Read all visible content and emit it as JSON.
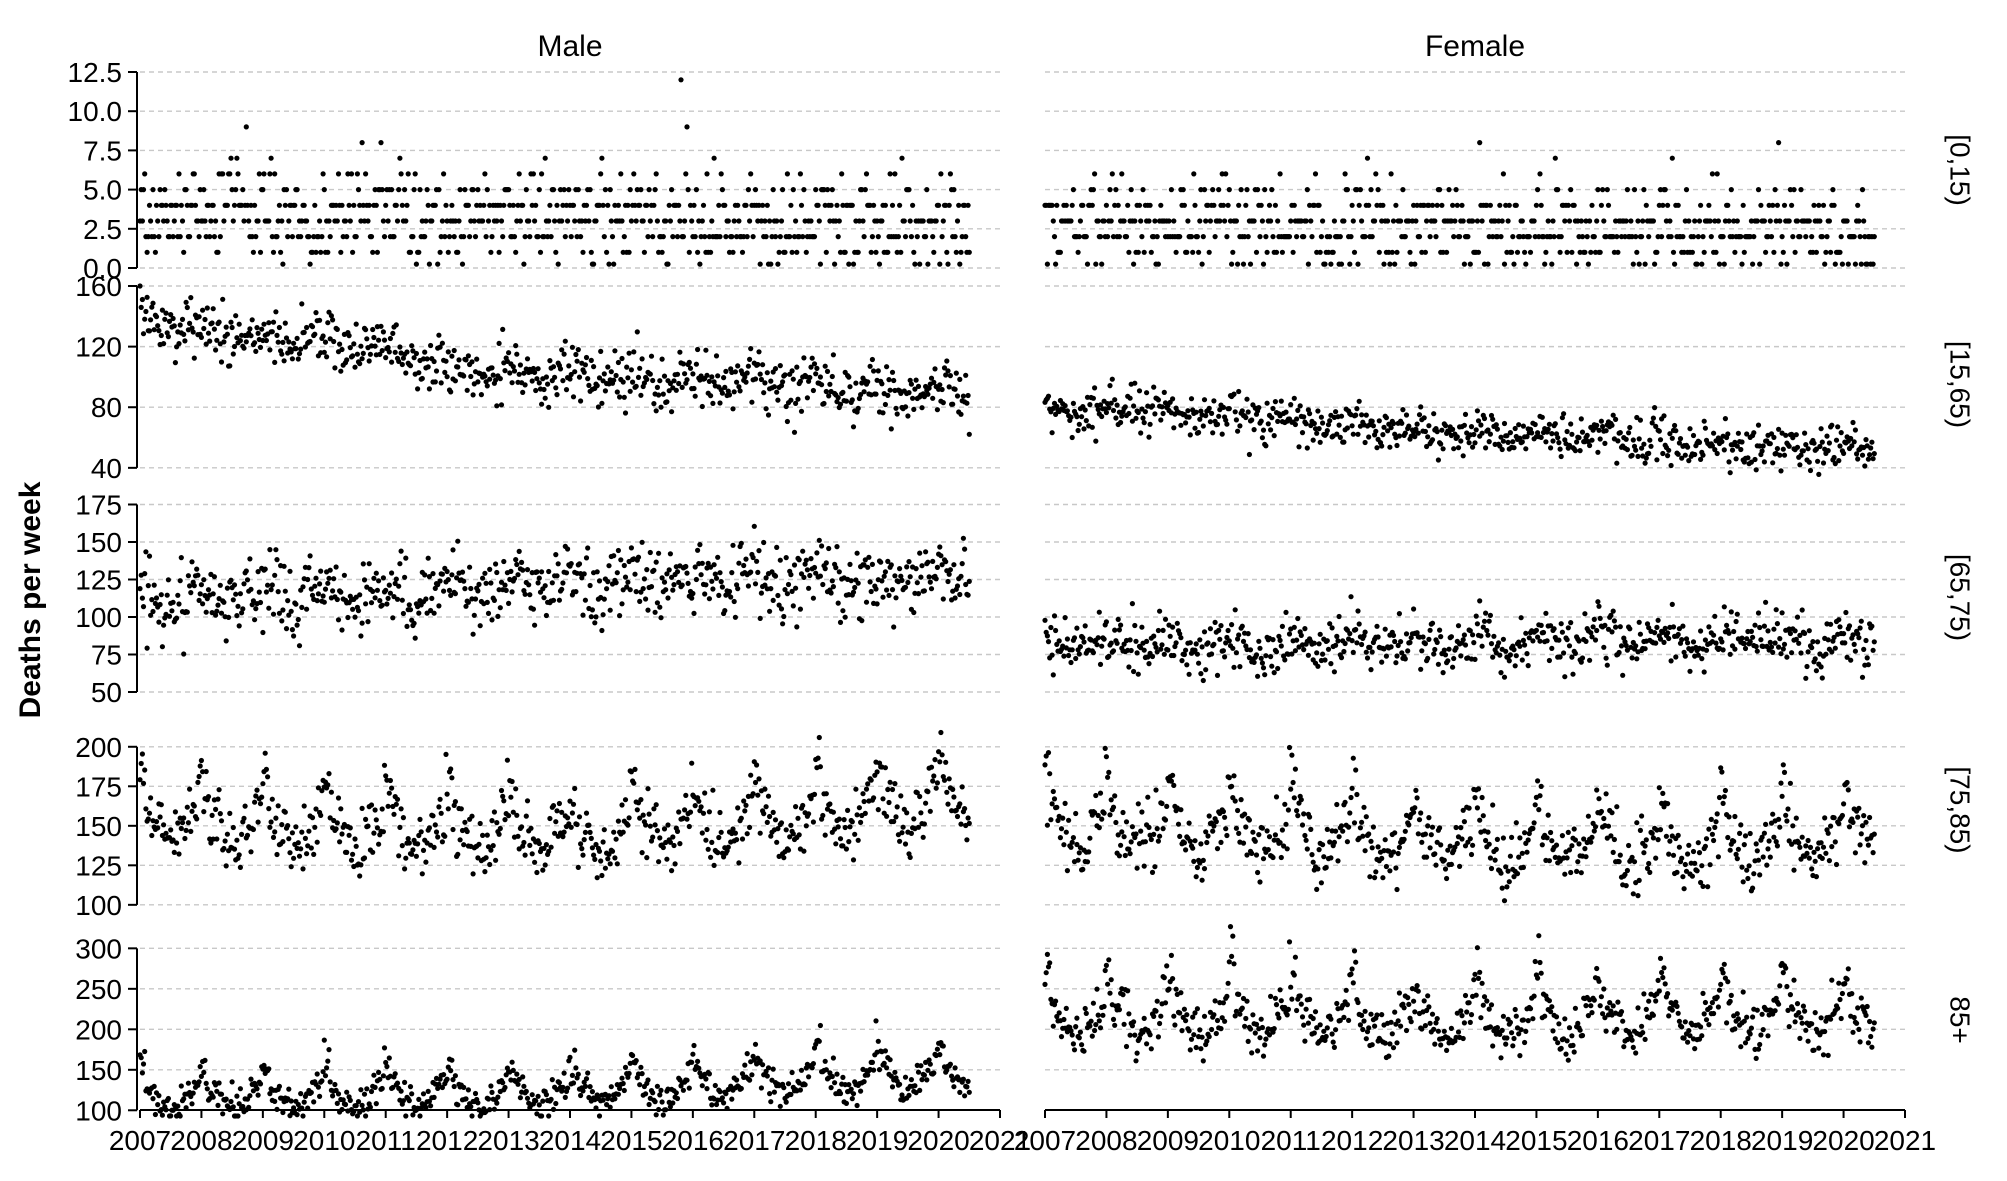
{
  "chart_data": {
    "type": "scatter",
    "ylabel": "Deaths per week",
    "columns": [
      "Male",
      "Female"
    ],
    "x_ticks": [
      "2007",
      "2008",
      "2009",
      "2010",
      "2011",
      "2012",
      "2013",
      "2014",
      "2015",
      "2016",
      "2017",
      "2018",
      "2019",
      "2020",
      "2021"
    ],
    "xlim": [
      2007,
      2021
    ],
    "data_range": [
      2007.0,
      2020.5
    ],
    "grid": "horizontal dashed",
    "marker_color": "#000000",
    "panels": [
      {
        "label": "[0,15)",
        "ylim": [
          0,
          12.5
        ],
        "y_ticks": [
          "0.0",
          "2.5",
          "5.0",
          "7.5",
          "10.0",
          "12.5"
        ],
        "series": [
          {
            "column": "Male",
            "base": [
              [
                2007,
                3.5
              ],
              [
                2013,
                3.2
              ],
              [
                2020.5,
                2.8
              ]
            ],
            "noise": 1.6,
            "integer": true,
            "seasonal": 0,
            "peak_rise": 0,
            "max_values": [
              12,
              9,
              9
            ]
          },
          {
            "column": "Female",
            "base": [
              [
                2007,
                3.0
              ],
              [
                2013,
                2.6
              ],
              [
                2020.5,
                2.0
              ]
            ],
            "noise": 1.5,
            "integer": true,
            "seasonal": 0,
            "peak_rise": 0,
            "max_values": [
              8,
              8,
              7
            ]
          }
        ]
      },
      {
        "label": "[15,65)",
        "ylim": [
          30,
          160
        ],
        "y_ticks": [
          "40",
          "80",
          "120",
          "160"
        ],
        "series": [
          {
            "column": "Male",
            "base": [
              [
                2007,
                140
              ],
              [
                2008,
                130
              ],
              [
                2011,
                120
              ],
              [
                2012,
                105
              ],
              [
                2015,
                100
              ],
              [
                2020.5,
                88
              ]
            ],
            "noise": 9,
            "integer": false,
            "seasonal": 4,
            "peak_rise": 0,
            "max_values": []
          },
          {
            "column": "Female",
            "base": [
              [
                2007,
                80
              ],
              [
                2009,
                78
              ],
              [
                2013,
                65
              ],
              [
                2016,
                60
              ],
              [
                2020.5,
                52
              ]
            ],
            "noise": 7,
            "integer": false,
            "seasonal": 3,
            "peak_rise": 0,
            "max_values": []
          }
        ]
      },
      {
        "label": "[65,75)",
        "ylim": [
          48,
          178
        ],
        "y_ticks": [
          "50",
          "75",
          "100",
          "125",
          "150",
          "175"
        ],
        "series": [
          {
            "column": "Male",
            "base": [
              [
                2007,
                110
              ],
              [
                2010,
                115
              ],
              [
                2013,
                120
              ],
              [
                2016,
                125
              ],
              [
                2020.5,
                128
              ]
            ],
            "noise": 12,
            "integer": false,
            "seasonal": 6,
            "peak_rise": 0,
            "max_values": []
          },
          {
            "column": "Female",
            "base": [
              [
                2007,
                82
              ],
              [
                2010,
                82
              ],
              [
                2014,
                83
              ],
              [
                2017,
                86
              ],
              [
                2020.5,
                84
              ]
            ],
            "noise": 9,
            "integer": false,
            "seasonal": 5,
            "peak_rise": 0,
            "max_values": []
          }
        ]
      },
      {
        "label": "[75,85)",
        "ylim": [
          98,
          222
        ],
        "y_ticks": [
          "100",
          "125",
          "150",
          "175",
          "200"
        ],
        "series": [
          {
            "column": "Male",
            "base": [
              [
                2007,
                155
              ],
              [
                2010,
                148
              ],
              [
                2014,
                142
              ],
              [
                2017,
                150
              ],
              [
                2020.5,
                165
              ]
            ],
            "noise": 10,
            "integer": false,
            "seasonal": 12,
            "peak_rise": 25,
            "max_values": []
          },
          {
            "column": "Female",
            "base": [
              [
                2007,
                150
              ],
              [
                2011,
                145
              ],
              [
                2014,
                138
              ],
              [
                2017,
                135
              ],
              [
                2020.5,
                145
              ]
            ],
            "noise": 10,
            "integer": false,
            "seasonal": 12,
            "peak_rise": 25,
            "max_values": []
          }
        ]
      },
      {
        "label": "85+",
        "ylim": [
          88,
          335
        ],
        "y_ticks": [
          "100",
          "150",
          "200",
          "250",
          "300"
        ],
        "series": [
          {
            "column": "Male",
            "base": [
              [
                2007,
                115
              ],
              [
                2010,
                118
              ],
              [
                2013,
                120
              ],
              [
                2016,
                130
              ],
              [
                2018,
                140
              ],
              [
                2020.5,
                140
              ]
            ],
            "noise": 10,
            "integer": false,
            "seasonal": 15,
            "peak_rise": 30,
            "max_values": []
          },
          {
            "column": "Female",
            "base": [
              [
                2007,
                215
              ],
              [
                2010,
                215
              ],
              [
                2014,
                212
              ],
              [
                2017,
                215
              ],
              [
                2020.5,
                215
              ]
            ],
            "noise": 16,
            "integer": false,
            "seasonal": 22,
            "peak_rise": 45,
            "max_values": []
          }
        ]
      }
    ]
  }
}
